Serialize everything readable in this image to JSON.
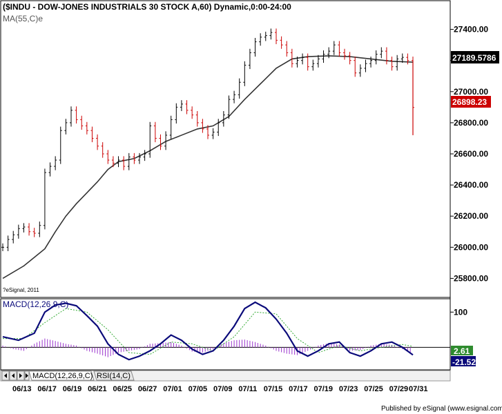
{
  "window": {
    "title": "($INDU - DOW-JONES INDUSTRIALS 30 STOCK A,60) Dynamic,0:00-24:00",
    "ma_label": "MA(55,C)e",
    "copyright": "?eSignal, 2011",
    "footer": "Published by eSignal (www.esignal.com)"
  },
  "tabs": [
    {
      "label": "MACD(12,26,9,C)"
    },
    {
      "label": "RSI(14,C)"
    }
  ],
  "nav_buttons": [
    "prev-first",
    "prev",
    "next",
    "next-last"
  ],
  "colors": {
    "up_bar": "#000000",
    "down_bar": "#cc0000",
    "ma_line": "#333333",
    "macd_line": "#0a0a7a",
    "signal_line": "#33aa33",
    "histogram": "#9933cc",
    "price_badge": "#000000",
    "last_badge": "#cc0000",
    "signal_badge": "#2e8b2e",
    "macd_badge": "#0a0a7a"
  },
  "chart_data": {
    "type": "line",
    "symbol": "$INDU",
    "interval": "60",
    "price_axis": {
      "ticks": [
        "27400.00",
        "27200.00",
        "27000.00",
        "26800.00",
        "26600.00",
        "26400.00",
        "26200.00",
        "26000.00",
        "25800.00"
      ],
      "ylim": [
        25700,
        27500
      ]
    },
    "current_price_label": "27189.5786",
    "last_price_label": "26898.23",
    "x_dates": [
      "06/13",
      "06/17",
      "06/19",
      "06/21",
      "06/25",
      "06/27",
      "07/01",
      "07/05",
      "07/09",
      "07/11",
      "07/15",
      "07/17",
      "07/19",
      "07/23",
      "07/25",
      "07/29",
      "07/31"
    ],
    "price_series": [
      [
        0,
        26000
      ],
      [
        1,
        26050
      ],
      [
        2,
        26080
      ],
      [
        3,
        26120
      ],
      [
        4,
        26130
      ],
      [
        5,
        26100
      ],
      [
        6,
        26090
      ],
      [
        7,
        26140
      ],
      [
        8,
        26480
      ],
      [
        9,
        26520
      ],
      [
        10,
        26560
      ],
      [
        11,
        26750
      ],
      [
        12,
        26800
      ],
      [
        13,
        26880
      ],
      [
        14,
        26820
      ],
      [
        15,
        26780
      ],
      [
        16,
        26750
      ],
      [
        17,
        26700
      ],
      [
        18,
        26650
      ],
      [
        19,
        26600
      ],
      [
        20,
        26560
      ],
      [
        21,
        26540
      ],
      [
        22,
        26560
      ],
      [
        23,
        26520
      ],
      [
        24,
        26580
      ],
      [
        25,
        26560
      ],
      [
        26,
        26580
      ],
      [
        27,
        26600
      ],
      [
        28,
        26780
      ],
      [
        29,
        26700
      ],
      [
        30,
        26650
      ],
      [
        31,
        26720
      ],
      [
        32,
        26820
      ],
      [
        33,
        26900
      ],
      [
        34,
        26920
      ],
      [
        35,
        26880
      ],
      [
        36,
        26850
      ],
      [
        37,
        26800
      ],
      [
        38,
        26760
      ],
      [
        39,
        26720
      ],
      [
        40,
        26740
      ],
      [
        41,
        26800
      ],
      [
        42,
        26850
      ],
      [
        43,
        26950
      ],
      [
        44,
        26980
      ],
      [
        45,
        27060
      ],
      [
        46,
        27170
      ],
      [
        47,
        27250
      ],
      [
        48,
        27320
      ],
      [
        49,
        27350
      ],
      [
        50,
        27360
      ],
      [
        51,
        27380
      ],
      [
        52,
        27330
      ],
      [
        53,
        27300
      ],
      [
        54,
        27250
      ],
      [
        55,
        27180
      ],
      [
        56,
        27200
      ],
      [
        57,
        27220
      ],
      [
        58,
        27160
      ],
      [
        59,
        27180
      ],
      [
        60,
        27210
      ],
      [
        61,
        27240
      ],
      [
        62,
        27260
      ],
      [
        63,
        27300
      ],
      [
        64,
        27250
      ],
      [
        65,
        27230
      ],
      [
        66,
        27200
      ],
      [
        67,
        27120
      ],
      [
        68,
        27150
      ],
      [
        69,
        27180
      ],
      [
        70,
        27200
      ],
      [
        71,
        27240
      ],
      [
        72,
        27260
      ],
      [
        73,
        27200
      ],
      [
        74,
        27160
      ],
      [
        75,
        27210
      ],
      [
        76,
        27220
      ],
      [
        77,
        27200
      ],
      [
        78,
        26898.23
      ]
    ],
    "ma_series": [
      [
        0,
        25800
      ],
      [
        4,
        25880
      ],
      [
        8,
        25990
      ],
      [
        10,
        26100
      ],
      [
        12,
        26200
      ],
      [
        14,
        26280
      ],
      [
        16,
        26350
      ],
      [
        18,
        26420
      ],
      [
        20,
        26500
      ],
      [
        22,
        26550
      ],
      [
        25,
        26570
      ],
      [
        28,
        26620
      ],
      [
        31,
        26680
      ],
      [
        34,
        26720
      ],
      [
        37,
        26760
      ],
      [
        40,
        26780
      ],
      [
        43,
        26840
      ],
      [
        46,
        26950
      ],
      [
        49,
        27050
      ],
      [
        52,
        27150
      ],
      [
        55,
        27210
      ],
      [
        58,
        27225
      ],
      [
        62,
        27230
      ],
      [
        66,
        27225
      ],
      [
        70,
        27210
      ],
      [
        74,
        27195
      ],
      [
        78,
        27189.5786
      ]
    ],
    "macd": {
      "title": "MACD(12,26,9,C)",
      "ticks": [
        "100"
      ],
      "signal_label": "2.61",
      "macd_label": "-21.52",
      "ylim": [
        -60,
        130
      ],
      "macd_series": [
        [
          0,
          30
        ],
        [
          3,
          20
        ],
        [
          6,
          40
        ],
        [
          8,
          100
        ],
        [
          10,
          120
        ],
        [
          12,
          125
        ],
        [
          14,
          118
        ],
        [
          16,
          90
        ],
        [
          18,
          60
        ],
        [
          20,
          10
        ],
        [
          22,
          -20
        ],
        [
          24,
          -35
        ],
        [
          26,
          -25
        ],
        [
          28,
          -10
        ],
        [
          30,
          10
        ],
        [
          32,
          35
        ],
        [
          34,
          20
        ],
        [
          36,
          -5
        ],
        [
          38,
          -20
        ],
        [
          40,
          -10
        ],
        [
          42,
          20
        ],
        [
          44,
          60
        ],
        [
          46,
          110
        ],
        [
          48,
          128
        ],
        [
          50,
          112
        ],
        [
          52,
          80
        ],
        [
          54,
          40
        ],
        [
          56,
          -10
        ],
        [
          58,
          -25
        ],
        [
          60,
          -10
        ],
        [
          62,
          10
        ],
        [
          64,
          15
        ],
        [
          66,
          -15
        ],
        [
          68,
          -25
        ],
        [
          70,
          -10
        ],
        [
          72,
          10
        ],
        [
          74,
          15
        ],
        [
          76,
          0
        ],
        [
          78,
          -21.52
        ]
      ],
      "signal_series": [
        [
          0,
          25
        ],
        [
          4,
          25
        ],
        [
          8,
          70
        ],
        [
          12,
          110
        ],
        [
          16,
          100
        ],
        [
          20,
          50
        ],
        [
          24,
          -15
        ],
        [
          28,
          -20
        ],
        [
          32,
          15
        ],
        [
          36,
          10
        ],
        [
          40,
          -10
        ],
        [
          44,
          30
        ],
        [
          48,
          100
        ],
        [
          52,
          95
        ],
        [
          56,
          25
        ],
        [
          60,
          -15
        ],
        [
          64,
          5
        ],
        [
          68,
          -10
        ],
        [
          72,
          0
        ],
        [
          76,
          8
        ],
        [
          78,
          2.61
        ]
      ],
      "histogram": [
        [
          0,
          5
        ],
        [
          2,
          -5
        ],
        [
          4,
          -10
        ],
        [
          6,
          10
        ],
        [
          8,
          25
        ],
        [
          10,
          18
        ],
        [
          12,
          10
        ],
        [
          14,
          5
        ],
        [
          16,
          -10
        ],
        [
          18,
          -18
        ],
        [
          20,
          -28
        ],
        [
          22,
          -15
        ],
        [
          24,
          -10
        ],
        [
          26,
          -5
        ],
        [
          28,
          10
        ],
        [
          30,
          12
        ],
        [
          32,
          15
        ],
        [
          34,
          5
        ],
        [
          36,
          -12
        ],
        [
          38,
          -15
        ],
        [
          40,
          -5
        ],
        [
          42,
          12
        ],
        [
          44,
          20
        ],
        [
          46,
          22
        ],
        [
          48,
          15
        ],
        [
          50,
          5
        ],
        [
          52,
          -10
        ],
        [
          54,
          -18
        ],
        [
          56,
          -22
        ],
        [
          58,
          -10
        ],
        [
          60,
          5
        ],
        [
          62,
          12
        ],
        [
          64,
          8
        ],
        [
          66,
          -10
        ],
        [
          68,
          -8
        ],
        [
          70,
          5
        ],
        [
          72,
          10
        ],
        [
          74,
          7
        ],
        [
          76,
          -5
        ],
        [
          78,
          -18
        ]
      ]
    }
  }
}
